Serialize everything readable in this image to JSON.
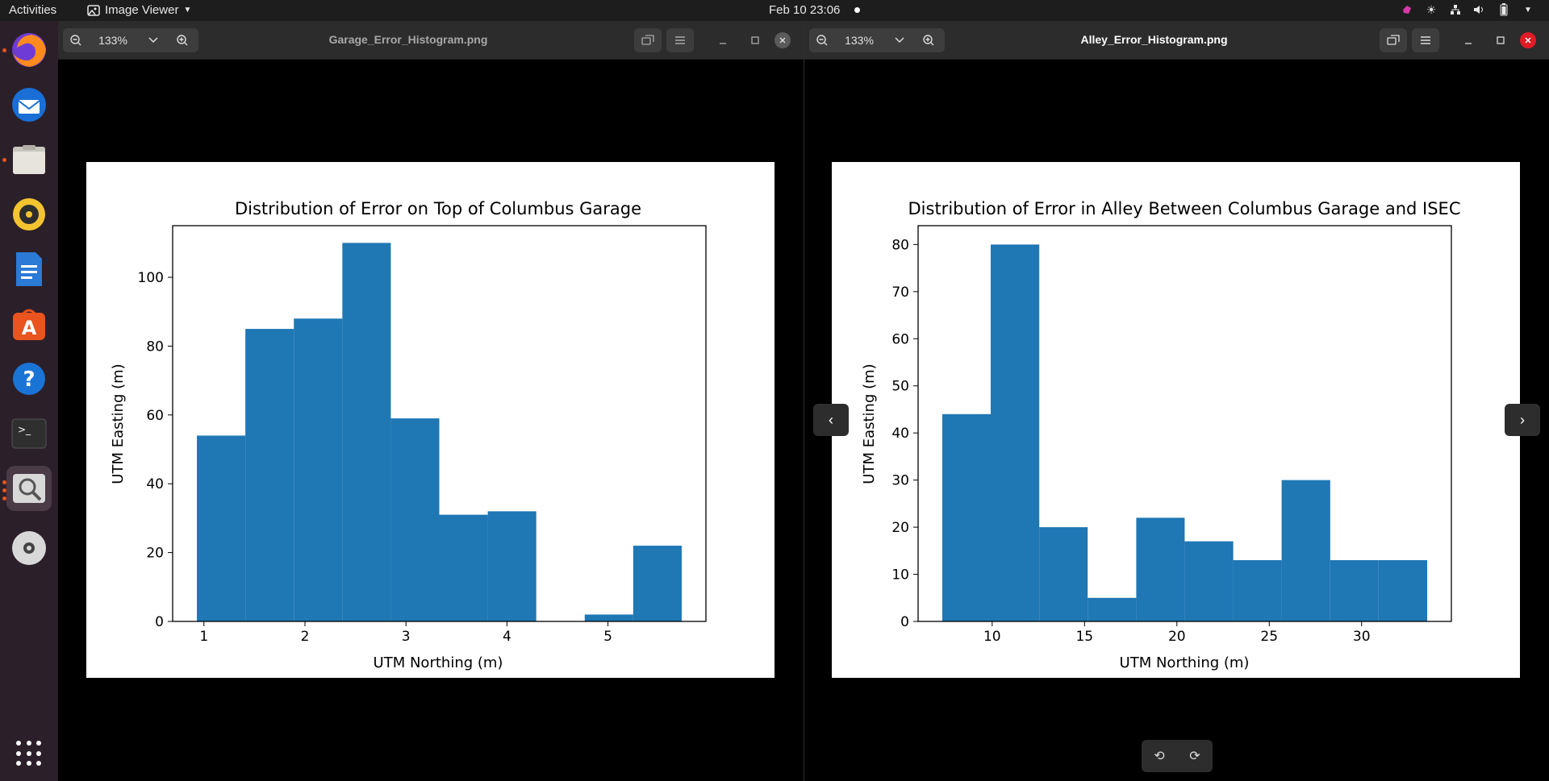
{
  "topbar": {
    "activities": "Activities",
    "app_name": "Image Viewer",
    "datetime": "Feb 10  23:06"
  },
  "dock": {
    "apps": [
      "firefox-icon",
      "thunderbird-icon",
      "files-icon",
      "rhythmbox-icon",
      "writer-icon",
      "app-center-icon",
      "help-icon",
      "terminal-icon",
      "image-viewer-icon",
      "dvd-icon"
    ]
  },
  "left_window": {
    "zoom": "133%",
    "filename": "Garage_Error_Histogram.png"
  },
  "right_window": {
    "zoom": "133%",
    "filename": "Alley_Error_Histogram.png"
  },
  "chart_data": [
    {
      "type": "bar",
      "title": "Distribution of Error on Top of Columbus Garage",
      "xlabel": "UTM Northing (m)",
      "ylabel": "UTM Easting (m)",
      "bin_edges": [
        0.93,
        1.41,
        1.89,
        2.37,
        2.85,
        3.33,
        3.81,
        4.29,
        4.77,
        5.25,
        5.73
      ],
      "values": [
        54,
        85,
        88,
        110,
        59,
        31,
        32,
        0,
        2,
        22
      ],
      "xlim": [
        0.69,
        5.97
      ],
      "ylim": [
        0,
        115
      ],
      "xticks": [
        1,
        2,
        3,
        4,
        5
      ],
      "yticks": [
        0,
        20,
        40,
        60,
        80,
        100
      ],
      "color": "#1f77b4"
    },
    {
      "type": "bar",
      "title": "Distribution of Error in Alley Between Columbus Garage and ISEC",
      "xlabel": "UTM Northing (m)",
      "ylabel": "UTM Easting (m)",
      "bin_edges": [
        7.3,
        9.92,
        12.55,
        15.17,
        17.8,
        20.42,
        23.05,
        25.67,
        28.3,
        30.92,
        33.55
      ],
      "values": [
        44,
        80,
        20,
        5,
        22,
        17,
        13,
        30,
        13,
        13
      ],
      "xlim": [
        5.99,
        34.86
      ],
      "ylim": [
        0,
        84
      ],
      "xticks": [
        10,
        15,
        20,
        25,
        30
      ],
      "yticks": [
        0,
        10,
        20,
        30,
        40,
        50,
        60,
        70,
        80
      ],
      "color": "#1f77b4"
    }
  ]
}
